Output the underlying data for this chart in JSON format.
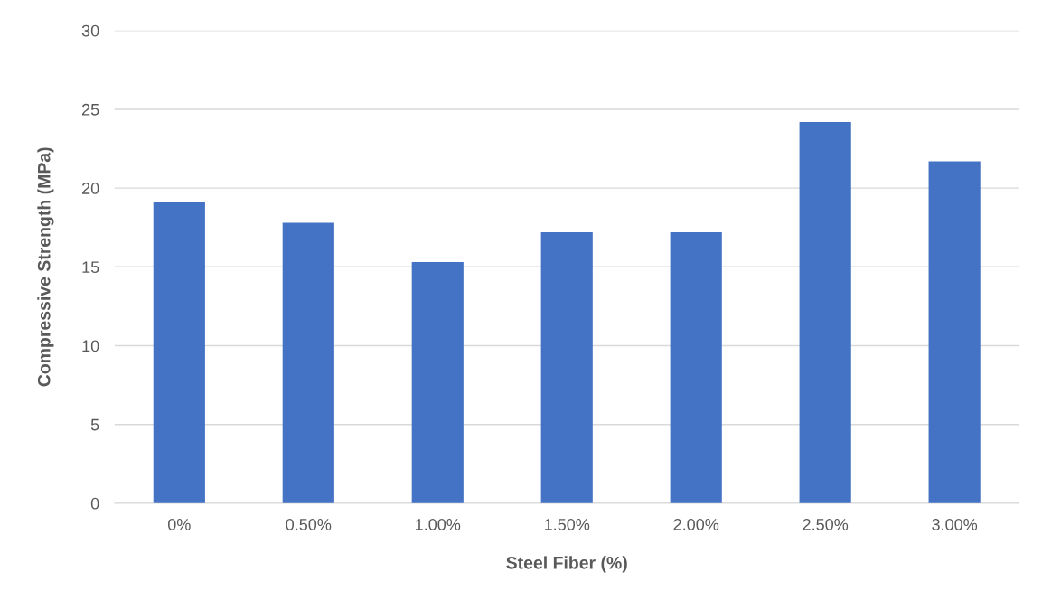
{
  "chart_data": {
    "type": "bar",
    "xlabel": "Steel Fiber (%)",
    "ylabel": "Compressive Strength (MPa)",
    "categories": [
      "0%",
      "0.50%",
      "1.00%",
      "1.50%",
      "2.00%",
      "2.50%",
      "3.00%"
    ],
    "values": [
      19.1,
      17.8,
      15.3,
      17.2,
      17.2,
      24.2,
      21.7
    ],
    "color": "#4472c4",
    "ylim": [
      0,
      30
    ],
    "yticks": [
      0,
      5,
      10,
      15,
      20,
      25,
      30
    ],
    "grid": "y"
  }
}
